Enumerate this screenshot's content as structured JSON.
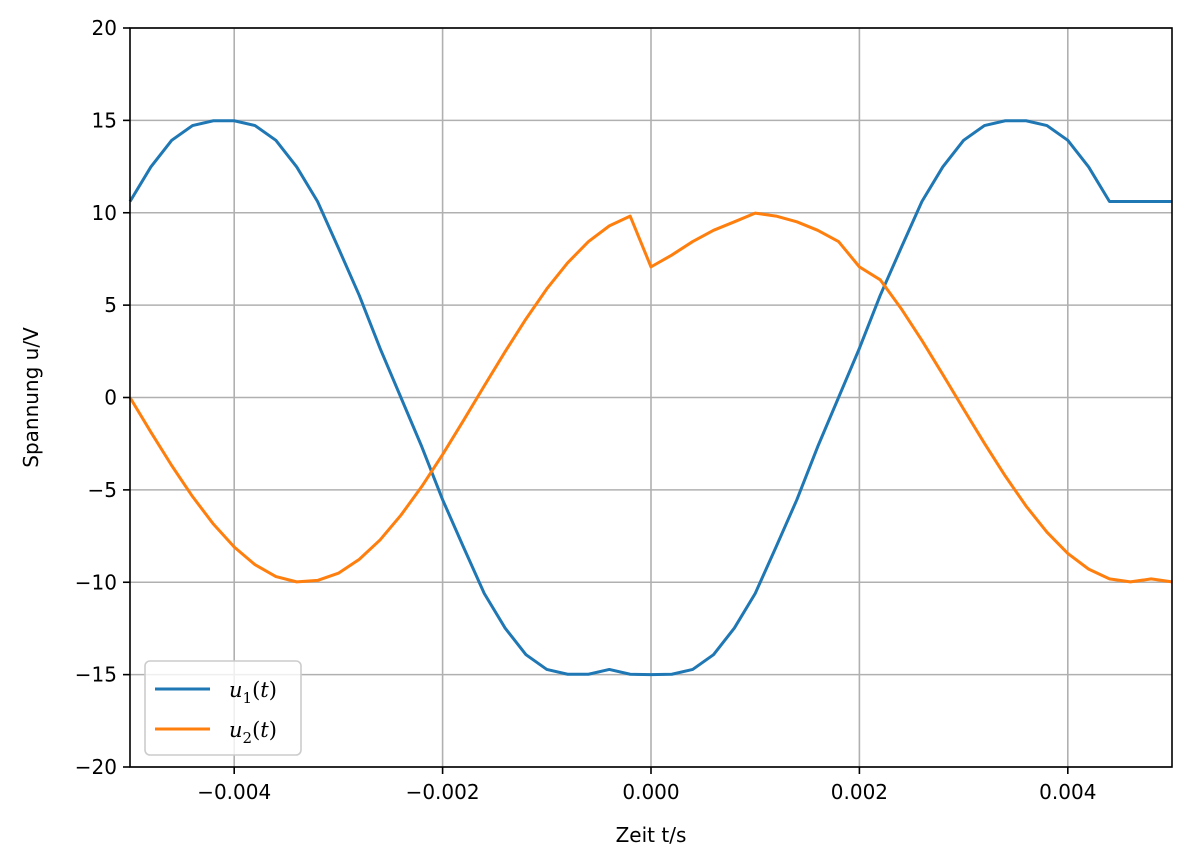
{
  "chart_data": {
    "type": "line",
    "title": "",
    "xlabel": "Zeit t/s",
    "ylabel": "Spannung u/V",
    "xlim": [
      -0.005,
      0.005
    ],
    "ylim": [
      -20,
      20
    ],
    "grid": true,
    "legend_position": "lower-left",
    "x_ticks": [
      {
        "value": -0.004,
        "label": "−0.004"
      },
      {
        "value": -0.002,
        "label": "−0.002"
      },
      {
        "value": 0.0,
        "label": "0.000"
      },
      {
        "value": 0.002,
        "label": "0.002"
      },
      {
        "value": 0.004,
        "label": "0.004"
      }
    ],
    "y_ticks": [
      {
        "value": 20,
        "label": "20"
      },
      {
        "value": 15,
        "label": "15"
      },
      {
        "value": 10,
        "label": "10"
      },
      {
        "value": 5,
        "label": "5"
      },
      {
        "value": 0,
        "label": "0"
      },
      {
        "value": -5,
        "label": "−5"
      },
      {
        "value": -10,
        "label": "−10"
      },
      {
        "value": -15,
        "label": "−15"
      },
      {
        "value": -20,
        "label": "−20"
      }
    ],
    "series": [
      {
        "name": "u1(t)",
        "legend_var": "u",
        "legend_sub": "1",
        "legend_arg": "t",
        "color": "#1f77b4",
        "x": [
          -0.005,
          -0.0048,
          -0.0046,
          -0.0044,
          -0.0042,
          -0.004,
          -0.0038,
          -0.0036,
          -0.0034,
          -0.0032,
          -0.003,
          -0.0028,
          -0.0026,
          -0.0024,
          -0.0022,
          -0.002,
          -0.0018,
          -0.0016,
          -0.0014,
          -0.0012,
          -0.001,
          -0.0008,
          -0.0006,
          -0.0004,
          -0.0002,
          0.0,
          0.0002,
          0.0004,
          0.0006,
          0.0008,
          0.001,
          0.0012,
          0.0014,
          0.0016,
          0.0018,
          0.002,
          0.0022,
          0.0024,
          0.0026,
          0.0028,
          0.003,
          0.0032,
          0.0034,
          0.0036,
          0.0038,
          0.004,
          0.0042,
          0.0044,
          0.0046,
          0.0048,
          0.005
        ],
        "y": [
          10.61,
          12.48,
          13.92,
          14.72,
          14.98,
          14.98,
          14.72,
          13.92,
          12.48,
          10.61,
          8.09,
          5.53,
          2.66,
          -0.0,
          -2.66,
          -5.53,
          -8.09,
          -10.61,
          -12.48,
          -13.92,
          -14.72,
          -14.98,
          -14.98,
          -14.72,
          -14.98,
          -15.0,
          -14.98,
          -14.72,
          -13.92,
          -12.48,
          -10.61,
          -8.09,
          -5.53,
          -2.66,
          0.0,
          2.66,
          5.53,
          8.09,
          10.61,
          12.48,
          13.92,
          14.72,
          14.98,
          14.98,
          14.72,
          13.92,
          12.48,
          10.61,
          10.61,
          10.61,
          10.61
        ]
      },
      {
        "name": "u2(t)",
        "legend_var": "u",
        "legend_sub": "2",
        "legend_arg": "t",
        "color": "#ff7f0e",
        "x": [
          -0.005,
          -0.0048,
          -0.0046,
          -0.0044,
          -0.0042,
          -0.004,
          -0.0038,
          -0.0036,
          -0.0034,
          -0.0032,
          -0.003,
          -0.0028,
          -0.0026,
          -0.0024,
          -0.0022,
          -0.002,
          -0.0018,
          -0.0016,
          -0.0014,
          -0.0012,
          -0.001,
          -0.0008,
          -0.0006,
          -0.0004,
          -0.0002,
          0.0,
          0.0002,
          0.0004,
          0.0006,
          0.0008,
          0.001,
          0.0012,
          0.0014,
          0.0016,
          0.0018,
          0.002,
          0.0022,
          0.0024,
          0.0026,
          0.0028,
          0.003,
          0.0032,
          0.0034,
          0.0036,
          0.0038,
          0.004,
          0.0042,
          0.0044,
          0.0046,
          0.0048,
          0.005
        ],
        "y": [
          0.0,
          -1.87,
          -3.68,
          -5.36,
          -6.85,
          -8.09,
          -9.05,
          -9.69,
          -9.98,
          -9.9,
          -9.51,
          -8.76,
          -7.71,
          -6.37,
          -4.82,
          -3.09,
          -1.25,
          0.63,
          2.48,
          4.25,
          5.88,
          7.29,
          8.44,
          9.29,
          9.82,
          7.07,
          7.71,
          8.44,
          9.05,
          9.51,
          9.98,
          9.82,
          9.51,
          9.05,
          8.44,
          7.07,
          6.37,
          4.82,
          3.09,
          1.25,
          -0.63,
          -2.48,
          -4.25,
          -5.88,
          -7.29,
          -8.44,
          -9.29,
          -9.82,
          -9.98,
          -9.82,
          -9.98
        ]
      }
    ]
  }
}
